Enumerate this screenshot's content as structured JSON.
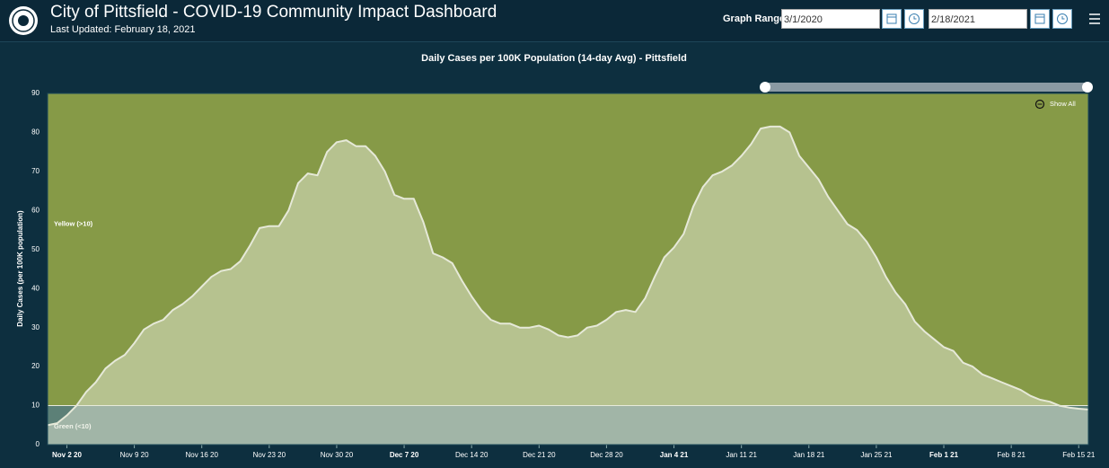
{
  "header": {
    "title": "City of Pittsfield - COVID-19 Community Impact Dashboard",
    "subtitle": "Last Updated: February 18, 2021",
    "range_label": "Graph Range",
    "range_start": "3/1/2020",
    "range_end": "2/18/2021"
  },
  "chart_data": {
    "type": "area",
    "title": "Daily Cases per 100K Population (14-day Avg) - Pittsfield",
    "y_label": "Daily Cases (per 100K population)",
    "zoom_button": "Show All",
    "x": [
      "2020-10-31",
      "2020-11-01",
      "2020-11-02",
      "2020-11-03",
      "2020-11-04",
      "2020-11-05",
      "2020-11-06",
      "2020-11-07",
      "2020-11-08",
      "2020-11-09",
      "2020-11-10",
      "2020-11-11",
      "2020-11-12",
      "2020-11-13",
      "2020-11-14",
      "2020-11-15",
      "2020-11-16",
      "2020-11-17",
      "2020-11-18",
      "2020-11-19",
      "2020-11-20",
      "2020-11-21",
      "2020-11-22",
      "2020-11-23",
      "2020-11-24",
      "2020-11-25",
      "2020-11-26",
      "2020-11-27",
      "2020-11-28",
      "2020-11-29",
      "2020-11-30",
      "2020-12-01",
      "2020-12-02",
      "2020-12-03",
      "2020-12-04",
      "2020-12-05",
      "2020-12-06",
      "2020-12-07",
      "2020-12-08",
      "2020-12-09",
      "2020-12-10",
      "2020-12-11",
      "2020-12-12",
      "2020-12-13",
      "2020-12-14",
      "2020-12-15",
      "2020-12-16",
      "2020-12-17",
      "2020-12-18",
      "2020-12-19",
      "2020-12-20",
      "2020-12-21",
      "2020-12-22",
      "2020-12-23",
      "2020-12-24",
      "2020-12-25",
      "2020-12-26",
      "2020-12-27",
      "2020-12-28",
      "2020-12-29",
      "2020-12-30",
      "2020-12-31",
      "2021-01-01",
      "2021-01-02",
      "2021-01-03",
      "2021-01-04",
      "2021-01-05",
      "2021-01-06",
      "2021-01-07",
      "2021-01-08",
      "2021-01-09",
      "2021-01-10",
      "2021-01-11",
      "2021-01-12",
      "2021-01-13",
      "2021-01-14",
      "2021-01-15",
      "2021-01-16",
      "2021-01-17",
      "2021-01-18",
      "2021-01-19",
      "2021-01-20",
      "2021-01-21",
      "2021-01-22",
      "2021-01-23",
      "2021-01-24",
      "2021-01-25",
      "2021-01-26",
      "2021-01-27",
      "2021-01-28",
      "2021-01-29",
      "2021-01-30",
      "2021-01-31",
      "2021-02-01",
      "2021-02-02",
      "2021-02-03",
      "2021-02-04",
      "2021-02-05",
      "2021-02-06",
      "2021-02-07",
      "2021-02-08",
      "2021-02-09",
      "2021-02-10",
      "2021-02-11",
      "2021-02-12",
      "2021-02-13",
      "2021-02-14",
      "2021-02-15",
      "2021-02-16"
    ],
    "values": [
      5,
      5.5,
      7.5,
      10,
      13.5,
      16,
      19.5,
      21.5,
      23,
      26,
      29.5,
      31,
      32,
      34.5,
      36,
      38,
      40.5,
      43,
      44.5,
      45,
      47,
      51,
      55.5,
      56,
      56,
      60,
      67,
      69.5,
      69,
      75,
      77.5,
      78,
      76.5,
      76.5,
      74,
      70,
      64,
      63,
      63,
      57,
      49,
      48,
      46.5,
      42,
      38,
      34.5,
      32,
      31,
      31,
      30,
      30,
      30.5,
      29.5,
      28,
      27.5,
      28,
      30,
      30.5,
      32,
      34,
      34.5,
      34,
      37.5,
      43,
      48,
      50.5,
      54,
      61,
      66,
      69,
      70,
      71.5,
      74,
      77,
      81,
      81.5,
      81.5,
      80,
      74,
      71,
      68,
      63.5,
      60,
      56.5,
      55,
      52,
      48,
      43,
      39,
      36,
      31.5,
      29,
      27,
      25,
      24,
      21,
      20,
      18,
      17,
      16,
      15,
      14,
      12.5,
      11.5,
      11,
      10,
      9.5,
      9.2,
      9
    ],
    "color": "#e6e9d8",
    "xlim": [
      "2020-10-31",
      "2021-02-16"
    ],
    "xticks": [
      {
        "value": "2020-11-02",
        "label": "Nov 2 20"
      },
      {
        "value": "2020-11-09",
        "label": "Nov 9 20"
      },
      {
        "value": "2020-11-16",
        "label": "Nov 16 20"
      },
      {
        "value": "2020-11-23",
        "label": "Nov 23 20"
      },
      {
        "value": "2020-11-30",
        "label": "Nov 30 20"
      },
      {
        "value": "2020-12-07",
        "label": "Dec 7 20"
      },
      {
        "value": "2020-12-14",
        "label": "Dec 14 20"
      },
      {
        "value": "2020-12-21",
        "label": "Dec 21 20"
      },
      {
        "value": "2020-12-28",
        "label": "Dec 28 20"
      },
      {
        "value": "2021-01-04",
        "label": "Jan 4 21"
      },
      {
        "value": "2021-01-11",
        "label": "Jan 11 21"
      },
      {
        "value": "2021-01-18",
        "label": "Jan 18 21"
      },
      {
        "value": "2021-01-25",
        "label": "Jan 25 21"
      },
      {
        "value": "2021-02-01",
        "label": "Feb 1 21"
      },
      {
        "value": "2021-02-08",
        "label": "Feb 8 21"
      },
      {
        "value": "2021-02-15",
        "label": "Feb 15 21"
      }
    ],
    "ylim": [
      0,
      90
    ],
    "yticks": [
      0,
      10,
      20,
      30,
      40,
      50,
      60,
      70,
      80,
      90
    ],
    "bands": [
      {
        "label": "Green (<10)",
        "from": 0,
        "to": 10,
        "color": "#5c8077"
      },
      {
        "label": "Yellow (>10)",
        "from": 10,
        "to": 90,
        "color": "#869a47"
      }
    ]
  }
}
